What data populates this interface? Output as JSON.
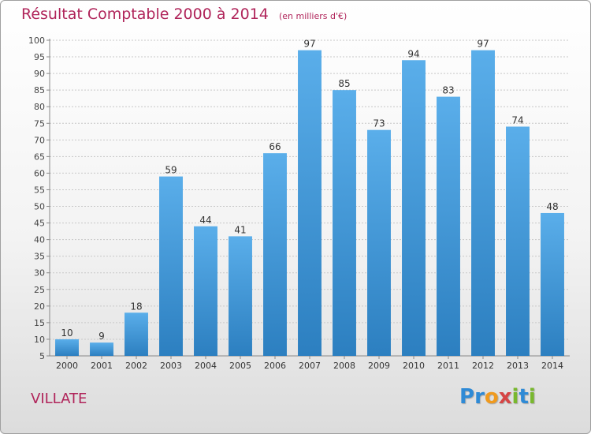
{
  "chart_data": {
    "type": "bar",
    "title": "Résultat Comptable 2000 à 2014",
    "subtitle": "(en milliers d'€)",
    "categories": [
      "2000",
      "2001",
      "2002",
      "2003",
      "2004",
      "2005",
      "2006",
      "2007",
      "2008",
      "2009",
      "2010",
      "2011",
      "2012",
      "2013",
      "2014"
    ],
    "values": [
      10,
      9,
      18,
      59,
      44,
      41,
      66,
      97,
      85,
      73,
      94,
      83,
      97,
      74,
      48
    ],
    "xlabel": "",
    "ylabel": "",
    "ylim": [
      5,
      100
    ],
    "yticks": [
      5,
      10,
      15,
      20,
      25,
      30,
      35,
      40,
      45,
      50,
      55,
      60,
      65,
      70,
      75,
      80,
      85,
      90,
      95,
      100
    ],
    "grid": true,
    "bar_color_top": "#5aaeea",
    "bar_color_bottom": "#2c7fc0"
  },
  "footer": {
    "commune": "VILLATE",
    "logo_letters": [
      "P",
      "r",
      "o",
      "x",
      "i",
      "t",
      "i"
    ],
    "logo_colors": [
      "#2e8ad6",
      "#2e8ad6",
      "#f09a1e",
      "#d64545",
      "#79b82e",
      "#2e8ad6",
      "#79b82e"
    ]
  }
}
